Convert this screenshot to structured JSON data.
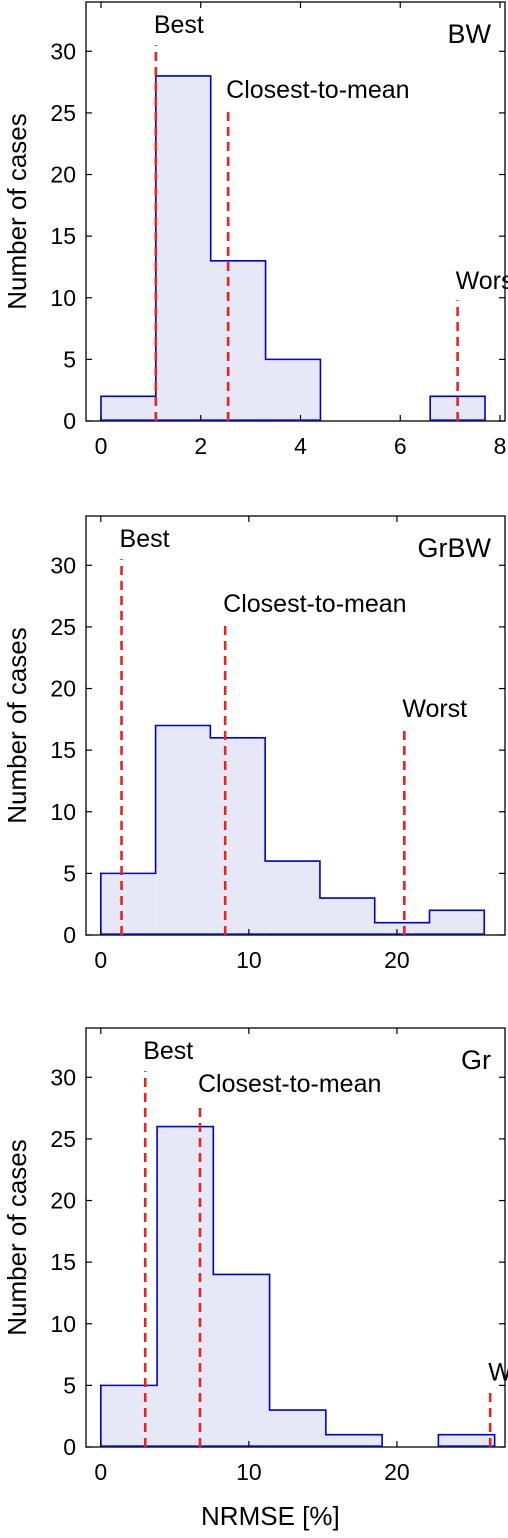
{
  "colors": {
    "bar_fill": "#e6e8f8",
    "bar_edge": "#0000cc",
    "marker": "#e8241c",
    "axis": "#000000"
  },
  "chart_data": [
    {
      "type": "bar",
      "title": "BW",
      "ylabel": "Number of cases",
      "xlabel": "",
      "xlim": [
        -0.3,
        8.1
      ],
      "ylim": [
        0,
        34
      ],
      "xticks": [
        0,
        2,
        4,
        6,
        8
      ],
      "yticks": [
        0,
        5,
        10,
        15,
        20,
        25,
        30
      ],
      "bin_edges": [
        0,
        1.1,
        2.2,
        3.3,
        4.4,
        5.5,
        6.6,
        7.7
      ],
      "counts": [
        2,
        28,
        13,
        5,
        0,
        0,
        2
      ],
      "markers": [
        {
          "label": "Best",
          "x": 1.1,
          "ytop": 30.5,
          "label_y": 31.5
        },
        {
          "label": "Closest-to-mean",
          "x": 2.55,
          "ytop": 25.3,
          "label_y": 26.2
        },
        {
          "label": "Worst",
          "x": 7.15,
          "ytop": 9.8,
          "label_y": 10.7
        }
      ]
    },
    {
      "type": "bar",
      "title": "GrBW",
      "ylabel": "Number of cases",
      "xlabel": "",
      "xlim": [
        -1.0,
        27.3
      ],
      "ylim": [
        0,
        34
      ],
      "xticks": [
        0,
        10,
        20
      ],
      "yticks": [
        0,
        5,
        10,
        15,
        20,
        25,
        30
      ],
      "bin_edges": [
        0,
        3.7,
        7.4,
        11.1,
        14.8,
        18.5,
        22.2,
        25.9
      ],
      "counts": [
        5,
        17,
        16,
        6,
        3,
        1,
        2
      ],
      "markers": [
        {
          "label": "Best",
          "x": 1.4,
          "ytop": 30.5,
          "label_y": 31.5
        },
        {
          "label": "Closest-to-mean",
          "x": 8.4,
          "ytop": 25.3,
          "label_y": 26.2
        },
        {
          "label": "Worst",
          "x": 20.5,
          "ytop": 16.8,
          "label_y": 17.7
        }
      ]
    },
    {
      "type": "bar",
      "title": "Gr",
      "ylabel": "Number of cases",
      "xlabel": "NRMSE [%]",
      "xlim": [
        -1.0,
        27.3
      ],
      "ylim": [
        0,
        34
      ],
      "xticks": [
        0,
        10,
        20
      ],
      "yticks": [
        0,
        5,
        10,
        15,
        20,
        25,
        30
      ],
      "bin_edges": [
        0,
        3.8,
        7.6,
        11.4,
        15.2,
        19.0,
        22.8,
        26.6
      ],
      "counts": [
        5,
        26,
        14,
        3,
        1,
        0,
        1
      ],
      "markers": [
        {
          "label": "Best",
          "x": 3.0,
          "ytop": 30.5,
          "label_y": 31.5
        },
        {
          "label": "Closest-to-mean",
          "x": 6.7,
          "ytop": 28.0,
          "label_y": 28.8
        },
        {
          "label": "Worst",
          "x": 26.3,
          "ytop": 4.5,
          "label_y": 5.4
        }
      ]
    }
  ]
}
